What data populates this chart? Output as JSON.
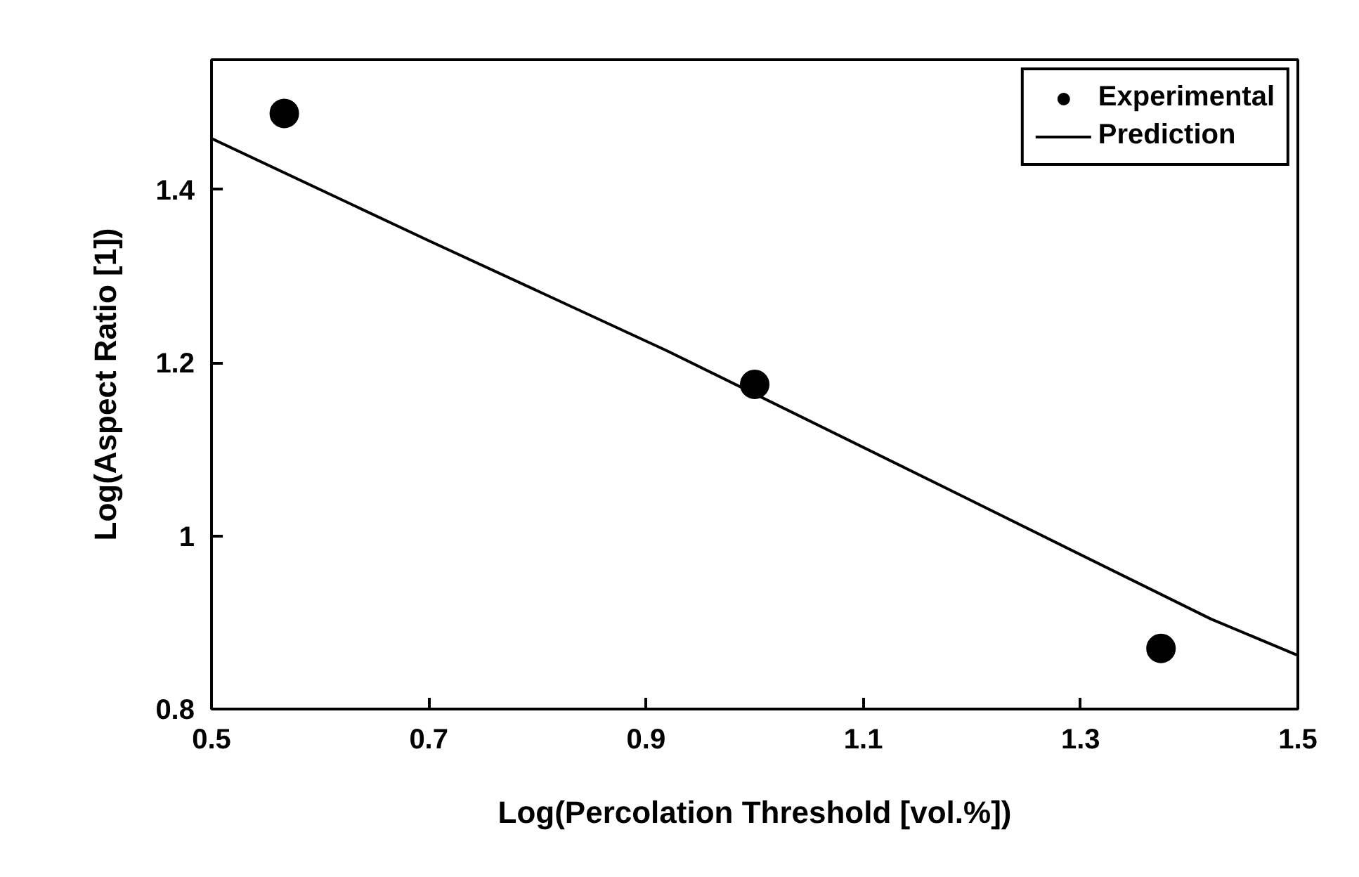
{
  "chart_data": {
    "type": "scatter",
    "xlabel": "Log(Percolation Threshold [vol.%])",
    "ylabel": "Log(Aspect Ratio [1])",
    "xlim": [
      0.5,
      1.5
    ],
    "xticks": [
      0.5,
      0.7,
      0.9,
      1.1,
      1.3,
      1.5
    ],
    "ylim": [
      0.8,
      1.55
    ],
    "yticks": [
      0.8,
      1,
      1.2,
      1.4
    ],
    "grid": false,
    "legend": "top right",
    "series": [
      {
        "name": "Experimental",
        "marker": "circle",
        "color": "#000000",
        "x": [
          0.567,
          1.0,
          1.374
        ],
        "values": [
          1.488,
          1.175,
          0.87
        ]
      },
      {
        "name": "Prediction",
        "type": "line",
        "marker": "none",
        "line_style": "solid",
        "color": "#000000",
        "x": [
          0.5,
          0.7,
          0.919,
          1.178,
          1.42,
          1.5
        ],
        "values": [
          1.459,
          1.341,
          1.214,
          1.054,
          0.904,
          0.862
        ]
      }
    ]
  }
}
